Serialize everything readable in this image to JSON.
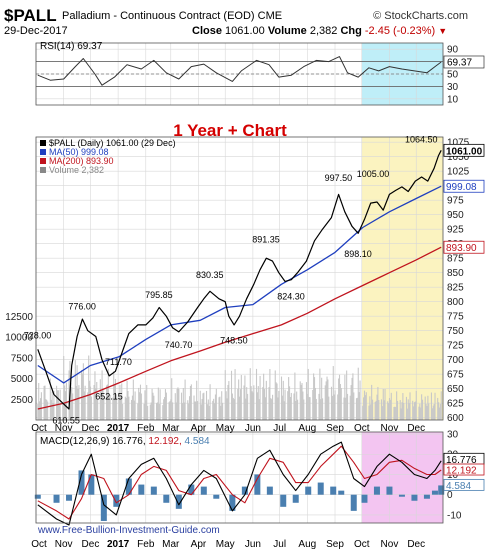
{
  "header": {
    "symbol": "$PALL",
    "description": "Palladium - Continuous Contract (EOD)",
    "exchange": "CME",
    "credit": "© StockCharts.com",
    "date": "29-Dec-2017",
    "close_label": "Close",
    "close_value": "1061.00",
    "volume_label": "Volume",
    "volume_value": "2,382",
    "chg_label": "Chg",
    "chg_value": "-2.45 (-0.23%)",
    "chg_marker": "▼"
  },
  "rsi_panel": {
    "legend": "RSI(14) 69.37",
    "current_label": "69.37",
    "ticks": [
      "90",
      "70",
      "50",
      "30",
      "10"
    ]
  },
  "price_panel": {
    "overlay_title": "1 Year + Chart",
    "legend": [
      {
        "text": "$PALL (Daily) 1061.00 (29 Dec)",
        "color": "#000000"
      },
      {
        "text": "MA(50) 999.08",
        "color": "#1f3fbf"
      },
      {
        "text": "MA(200) 893.90",
        "color": "#c0141e"
      },
      {
        "text": "Volume 2,382",
        "color": "#888888"
      }
    ],
    "price_ticks": [
      "1075",
      "1050",
      "1025",
      "1000",
      "975",
      "950",
      "925",
      "900",
      "875",
      "850",
      "825",
      "800",
      "775",
      "750",
      "725",
      "700",
      "675",
      "650",
      "625",
      "600"
    ],
    "volume_ticks": [
      "12500",
      "10000",
      "7500",
      "5000",
      "2500"
    ],
    "last_price_label": "1061.00",
    "ma50_label": "999.08",
    "ma200_label": "893.90",
    "annotations": [
      {
        "text": "728.00",
        "value": 728.0
      },
      {
        "text": "610.55",
        "value": 610.55
      },
      {
        "text": "776.00",
        "value": 776.0
      },
      {
        "text": "652.15",
        "value": 652.15
      },
      {
        "text": "795.85",
        "value": 795.85
      },
      {
        "text": "711.70",
        "value": 711.7
      },
      {
        "text": "740.70",
        "value": 740.7
      },
      {
        "text": "830.35",
        "value": 830.35
      },
      {
        "text": "748.50",
        "value": 748.5
      },
      {
        "text": "891.35",
        "value": 891.35
      },
      {
        "text": "824.30",
        "value": 824.3
      },
      {
        "text": "997.50",
        "value": 997.5
      },
      {
        "text": "898.10",
        "value": 898.1
      },
      {
        "text": "1005.00",
        "value": 1005.0
      },
      {
        "text": "1064.50",
        "value": 1064.5
      }
    ]
  },
  "macd_panel": {
    "legend_prefix": "MACD(12,26,9)",
    "macd_value": "16.776",
    "signal_value": "12.192",
    "hist_value": "4.584",
    "ticks": [
      "30",
      "20",
      "10",
      "0",
      "-10"
    ],
    "macd_label": "16.776",
    "signal_label": "12.192",
    "hist_label": "4.584"
  },
  "x_axis": {
    "labels": [
      "Oct",
      "Nov",
      "Dec",
      "2017",
      "Feb",
      "Mar",
      "Apr",
      "May",
      "Jun",
      "Jul",
      "Aug",
      "Sep",
      "Oct",
      "Nov",
      "Dec"
    ]
  },
  "watermark": "www.Free-Bullion-Investment-Guide.com",
  "colors": {
    "price": "#000000",
    "ma50": "#1f3fbf",
    "ma200": "#c0141e",
    "volume": "#c8c8c8",
    "highlight_yellow": "#fbf3c0",
    "highlight_cyan": "#bfeef8",
    "highlight_magenta": "#f3c5f1",
    "macd_line": "#000000",
    "signal_line": "#c0141e",
    "histogram": "#4a7fb0",
    "grid": "#d8d8d8",
    "chg_red": "#c00000"
  },
  "chart_data": {
    "type": "line",
    "title": "1 Year + Chart",
    "x_period": [
      "Oct-2016",
      "Dec-2017"
    ],
    "price_series": {
      "name": "$PALL (Daily)",
      "points": [
        [
          "2016-10-03",
          718
        ],
        [
          "2016-10-12",
          680
        ],
        [
          "2016-10-21",
          640
        ],
        [
          "2016-10-31",
          625
        ],
        [
          "2016-11-07",
          615
        ],
        [
          "2016-11-10",
          690
        ],
        [
          "2016-11-16",
          740
        ],
        [
          "2016-11-22",
          770
        ],
        [
          "2016-11-28",
          750
        ],
        [
          "2016-12-07",
          740
        ],
        [
          "2016-12-14",
          700
        ],
        [
          "2016-12-22",
          672
        ],
        [
          "2016-12-29",
          680
        ],
        [
          "2017-01-06",
          715
        ],
        [
          "2017-01-13",
          745
        ],
        [
          "2017-01-23",
          760
        ],
        [
          "2017-02-01",
          760
        ],
        [
          "2017-02-09",
          772
        ],
        [
          "2017-02-16",
          790
        ],
        [
          "2017-02-24",
          775
        ],
        [
          "2017-03-03",
          755
        ],
        [
          "2017-03-10",
          748
        ],
        [
          "2017-03-20",
          765
        ],
        [
          "2017-03-31",
          790
        ],
        [
          "2017-04-07",
          805
        ],
        [
          "2017-04-14",
          818
        ],
        [
          "2017-04-24",
          805
        ],
        [
          "2017-05-01",
          800
        ],
        [
          "2017-05-05",
          775
        ],
        [
          "2017-05-11",
          760
        ],
        [
          "2017-05-17",
          775
        ],
        [
          "2017-05-25",
          805
        ],
        [
          "2017-06-02",
          830
        ],
        [
          "2017-06-09",
          855
        ],
        [
          "2017-06-16",
          875
        ],
        [
          "2017-06-23",
          870
        ],
        [
          "2017-06-30",
          850
        ],
        [
          "2017-07-07",
          835
        ],
        [
          "2017-07-14",
          838
        ],
        [
          "2017-07-21",
          850
        ],
        [
          "2017-07-31",
          870
        ],
        [
          "2017-08-09",
          905
        ],
        [
          "2017-08-18",
          925
        ],
        [
          "2017-08-28",
          945
        ],
        [
          "2017-09-05",
          985
        ],
        [
          "2017-09-12",
          955
        ],
        [
          "2017-09-20",
          930
        ],
        [
          "2017-09-27",
          918
        ],
        [
          "2017-10-04",
          942
        ],
        [
          "2017-10-11",
          970
        ],
        [
          "2017-10-18",
          972
        ],
        [
          "2017-10-25",
          958
        ],
        [
          "2017-11-01",
          985
        ],
        [
          "2017-11-08",
          992
        ],
        [
          "2017-11-15",
          998
        ],
        [
          "2017-11-22",
          990
        ],
        [
          "2017-11-30",
          1008
        ],
        [
          "2017-12-07",
          1015
        ],
        [
          "2017-12-14",
          1008
        ],
        [
          "2017-12-21",
          1030
        ],
        [
          "2017-12-26",
          1052
        ],
        [
          "2017-12-29",
          1061
        ]
      ]
    },
    "ma50_series": {
      "name": "MA(50)",
      "points": [
        [
          "2016-10-03",
          690
        ],
        [
          "2016-11-01",
          660
        ],
        [
          "2016-12-01",
          690
        ],
        [
          "2017-01-02",
          705
        ],
        [
          "2017-02-01",
          735
        ],
        [
          "2017-03-01",
          760
        ],
        [
          "2017-04-03",
          768
        ],
        [
          "2017-05-01",
          790
        ],
        [
          "2017-06-01",
          795
        ],
        [
          "2017-07-03",
          830
        ],
        [
          "2017-08-01",
          855
        ],
        [
          "2017-09-01",
          885
        ],
        [
          "2017-10-02",
          928
        ],
        [
          "2017-11-01",
          955
        ],
        [
          "2017-12-01",
          978
        ],
        [
          "2017-12-29",
          999.08
        ]
      ]
    },
    "ma200_series": {
      "name": "MA(200)",
      "points": [
        [
          "2016-10-03",
          615
        ],
        [
          "2016-11-01",
          625
        ],
        [
          "2016-12-01",
          640
        ],
        [
          "2017-01-02",
          660
        ],
        [
          "2017-02-01",
          680
        ],
        [
          "2017-03-01",
          698
        ],
        [
          "2017-04-03",
          715
        ],
        [
          "2017-05-01",
          730
        ],
        [
          "2017-06-01",
          745
        ],
        [
          "2017-07-03",
          760
        ],
        [
          "2017-08-01",
          780
        ],
        [
          "2017-09-01",
          805
        ],
        [
          "2017-10-02",
          828
        ],
        [
          "2017-11-01",
          850
        ],
        [
          "2017-12-01",
          872
        ],
        [
          "2017-12-29",
          893.9
        ]
      ]
    },
    "volume_series": {
      "name": "Volume",
      "monthly_typical": [
        [
          "2016-10",
          3500
        ],
        [
          "2016-11",
          5500
        ],
        [
          "2016-12",
          4500
        ],
        [
          "2017-01",
          3500
        ],
        [
          "2017-02",
          3000
        ],
        [
          "2017-03",
          3500
        ],
        [
          "2017-04",
          3000
        ],
        [
          "2017-05",
          4500
        ],
        [
          "2017-06",
          4500
        ],
        [
          "2017-07",
          4000
        ],
        [
          "2017-08",
          4500
        ],
        [
          "2017-09",
          4500
        ],
        [
          "2017-10",
          3000
        ],
        [
          "2017-11",
          2500
        ],
        [
          "2017-12",
          2500
        ]
      ],
      "last": 2382
    },
    "rsi_series": {
      "name": "RSI(14)",
      "points": [
        [
          "2016-10-03",
          48
        ],
        [
          "2016-10-17",
          40
        ],
        [
          "2016-11-01",
          42
        ],
        [
          "2016-11-14",
          62
        ],
        [
          "2016-11-23",
          75
        ],
        [
          "2016-12-06",
          50
        ],
        [
          "2016-12-14",
          32
        ],
        [
          "2016-12-28",
          45
        ],
        [
          "2017-01-11",
          65
        ],
        [
          "2017-01-27",
          58
        ],
        [
          "2017-02-10",
          72
        ],
        [
          "2017-02-24",
          52
        ],
        [
          "2017-03-10",
          42
        ],
        [
          "2017-03-24",
          62
        ],
        [
          "2017-04-07",
          66
        ],
        [
          "2017-04-21",
          52
        ],
        [
          "2017-05-09",
          38
        ],
        [
          "2017-05-19",
          55
        ],
        [
          "2017-06-05",
          72
        ],
        [
          "2017-06-19",
          65
        ],
        [
          "2017-06-30",
          45
        ],
        [
          "2017-07-14",
          48
        ],
        [
          "2017-07-28",
          62
        ],
        [
          "2017-08-11",
          72
        ],
        [
          "2017-08-25",
          70
        ],
        [
          "2017-09-06",
          78
        ],
        [
          "2017-09-15",
          52
        ],
        [
          "2017-09-27",
          45
        ],
        [
          "2017-10-09",
          60
        ],
        [
          "2017-10-20",
          55
        ],
        [
          "2017-11-01",
          62
        ],
        [
          "2017-11-15",
          58
        ],
        [
          "2017-11-29",
          55
        ],
        [
          "2017-12-13",
          52
        ],
        [
          "2017-12-22",
          62
        ],
        [
          "2017-12-29",
          69.37
        ]
      ]
    },
    "macd_series": {
      "name": "MACD(12,26,9)",
      "points": [
        [
          "2016-10-03",
          -5
        ],
        [
          "2016-10-24",
          -12
        ],
        [
          "2016-11-07",
          -15
        ],
        [
          "2016-11-21",
          10
        ],
        [
          "2016-12-02",
          20
        ],
        [
          "2016-12-16",
          -5
        ],
        [
          "2016-12-30",
          -10
        ],
        [
          "2017-01-13",
          8
        ],
        [
          "2017-01-27",
          15
        ],
        [
          "2017-02-10",
          18
        ],
        [
          "2017-02-24",
          8
        ],
        [
          "2017-03-10",
          -5
        ],
        [
          "2017-03-24",
          5
        ],
        [
          "2017-04-07",
          12
        ],
        [
          "2017-04-21",
          8
        ],
        [
          "2017-05-09",
          -8
        ],
        [
          "2017-05-23",
          0
        ],
        [
          "2017-06-06",
          18
        ],
        [
          "2017-06-20",
          22
        ],
        [
          "2017-07-05",
          10
        ],
        [
          "2017-07-19",
          2
        ],
        [
          "2017-08-02",
          10
        ],
        [
          "2017-08-16",
          20
        ],
        [
          "2017-08-30",
          24
        ],
        [
          "2017-09-08",
          26
        ],
        [
          "2017-09-22",
          8
        ],
        [
          "2017-10-04",
          4
        ],
        [
          "2017-10-18",
          14
        ],
        [
          "2017-11-01",
          20
        ],
        [
          "2017-11-15",
          16
        ],
        [
          "2017-11-29",
          10
        ],
        [
          "2017-12-13",
          8
        ],
        [
          "2017-12-22",
          12
        ],
        [
          "2017-12-29",
          16.776
        ]
      ]
    },
    "signal_series": {
      "name": "Signal",
      "points": [
        [
          "2016-10-03",
          -3
        ],
        [
          "2016-10-24",
          -8
        ],
        [
          "2016-11-07",
          -12
        ],
        [
          "2016-11-21",
          -2
        ],
        [
          "2016-12-02",
          10
        ],
        [
          "2016-12-16",
          8
        ],
        [
          "2016-12-30",
          -4
        ],
        [
          "2017-01-13",
          0
        ],
        [
          "2017-01-27",
          10
        ],
        [
          "2017-02-10",
          14
        ],
        [
          "2017-02-24",
          12
        ],
        [
          "2017-03-10",
          2
        ],
        [
          "2017-03-24",
          0
        ],
        [
          "2017-04-07",
          8
        ],
        [
          "2017-04-21",
          10
        ],
        [
          "2017-05-09",
          0
        ],
        [
          "2017-05-23",
          -4
        ],
        [
          "2017-06-06",
          8
        ],
        [
          "2017-06-20",
          18
        ],
        [
          "2017-07-05",
          16
        ],
        [
          "2017-07-19",
          6
        ],
        [
          "2017-08-02",
          6
        ],
        [
          "2017-08-16",
          14
        ],
        [
          "2017-08-30",
          20
        ],
        [
          "2017-09-08",
          24
        ],
        [
          "2017-09-22",
          16
        ],
        [
          "2017-10-04",
          8
        ],
        [
          "2017-10-18",
          10
        ],
        [
          "2017-11-01",
          16
        ],
        [
          "2017-11-15",
          17
        ],
        [
          "2017-11-29",
          13
        ],
        [
          "2017-12-13",
          10
        ],
        [
          "2017-12-22",
          10
        ],
        [
          "2017-12-29",
          12.192
        ]
      ]
    }
  }
}
